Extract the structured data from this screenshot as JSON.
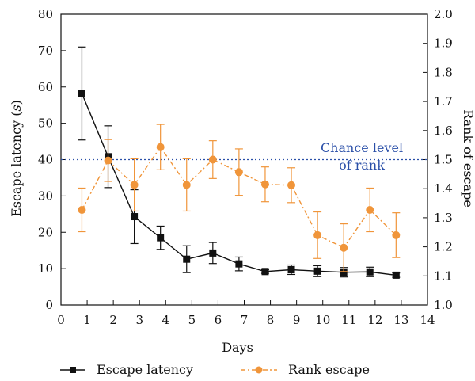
{
  "chart_data": {
    "type": "line",
    "xlabel": "Days",
    "ylabel_left": "Escape latency (s)",
    "ylabel_left_prefix": "Escape latency (",
    "ylabel_left_unit": "s",
    "ylabel_left_suffix": ")",
    "ylabel_right": "Rank of escape",
    "xlim": [
      0,
      14
    ],
    "ylim_left": [
      0,
      80
    ],
    "ylim_right": [
      1.0,
      2.0
    ],
    "x_ticks": [
      "0",
      "1",
      "2",
      "3",
      "4",
      "5",
      "6",
      "7",
      "8",
      "9",
      "10",
      "11",
      "12",
      "13",
      "14"
    ],
    "y_left_ticks": [
      "0",
      "10",
      "20",
      "30",
      "40",
      "50",
      "60",
      "70",
      "80"
    ],
    "y_right_ticks": [
      "1.0",
      "1.1",
      "1.2",
      "1.3",
      "1.4",
      "1.5",
      "1.6",
      "1.7",
      "1.8",
      "1.9",
      "2.0"
    ],
    "grid": false,
    "legend_position": "bottom",
    "reference_line": {
      "value": 1.5,
      "axis": "right",
      "label_line1": "Chance level",
      "label_line2": "of rank",
      "color": "#2a4fa8"
    },
    "series": [
      {
        "name": "Escape latency",
        "axis": "left",
        "color": "#111111",
        "marker": "square",
        "x": [
          0.8,
          1.8,
          2.8,
          3.8,
          4.8,
          5.8,
          6.8,
          7.8,
          8.8,
          9.8,
          10.8,
          11.8,
          12.8
        ],
        "y": [
          58.2,
          40.8,
          24.3,
          18.5,
          12.6,
          14.3,
          11.3,
          9.2,
          9.7,
          9.3,
          9.0,
          9.1,
          8.2
        ],
        "err": [
          12.8,
          8.5,
          7.4,
          3.2,
          3.7,
          2.9,
          1.9,
          0.5,
          1.3,
          1.5,
          1.3,
          1.3,
          0.6
        ]
      },
      {
        "name": "Rank escape",
        "axis": "right",
        "color": "#f0953a",
        "marker": "circle",
        "x": [
          0.8,
          1.8,
          2.8,
          3.8,
          4.8,
          5.8,
          6.8,
          7.8,
          8.8,
          9.8,
          10.8,
          11.8,
          12.8
        ],
        "y": [
          1.327,
          1.497,
          1.413,
          1.543,
          1.413,
          1.5,
          1.457,
          1.415,
          1.412,
          1.24,
          1.197,
          1.327,
          1.24
        ],
        "err": [
          0.075,
          0.072,
          0.09,
          0.078,
          0.09,
          0.065,
          0.08,
          0.06,
          0.06,
          0.08,
          0.082,
          0.075,
          0.077
        ]
      }
    ]
  }
}
